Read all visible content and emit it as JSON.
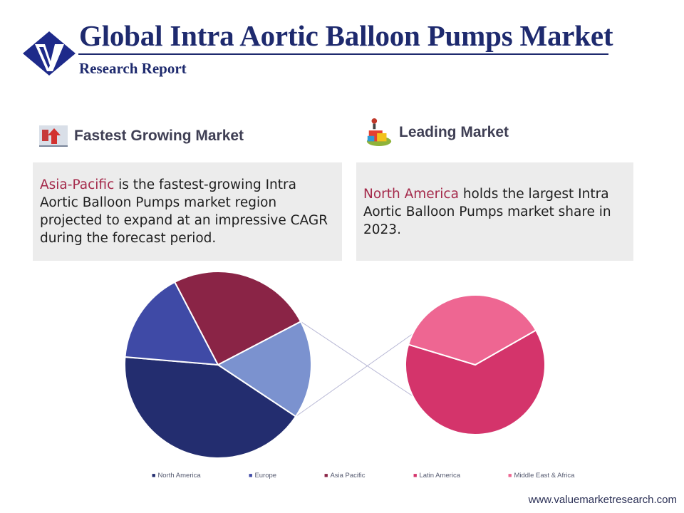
{
  "header": {
    "title": "Global Intra Aortic Balloon Pumps Market",
    "subtitle": "Research Report",
    "logo_icon": "v-diamond-logo-icon"
  },
  "fastest": {
    "icon": "up-arrow-chart-icon",
    "heading": "Fastest Growing Market",
    "region": "Asia-Pacific",
    "text": " is the fastest-growing Intra Aortic Balloon Pumps market region projected to expand at an impressive CAGR during the forecast period."
  },
  "leading": {
    "icon": "trophy-podium-icon",
    "heading": "Leading Market",
    "region": "North America",
    "text": " holds the largest Intra Aortic Balloon Pumps market share in 2023."
  },
  "colors": {
    "title": "#1e2a6e",
    "highlight": "#a4294a",
    "box_bg": "#ececec"
  },
  "chart_data": {
    "type": "pie",
    "title": "",
    "categories": [
      "North America",
      "Europe",
      "Asia Pacific",
      "Latin America",
      "Middle East & Africa"
    ],
    "values": [
      42,
      16,
      25,
      10.7,
      6.3
    ],
    "colors": [
      "#232d6f",
      "#3f4aa6",
      "#8a2446",
      "#7b92cf",
      "#d4346b",
      "#ee6692"
    ],
    "legend_placement": "bottom",
    "legend_colors": [
      "#232d6f",
      "#3f4aa6",
      "#8a2446",
      "#d4346b",
      "#ee6692"
    ],
    "breakout": {
      "type": "pie",
      "series": [
        {
          "name": "Latin America",
          "share_of_other": 63
        },
        {
          "name": "Middle East & Africa",
          "share_of_other": 37
        }
      ]
    }
  },
  "footer": {
    "url": "www.valuemarketresearch.com"
  }
}
